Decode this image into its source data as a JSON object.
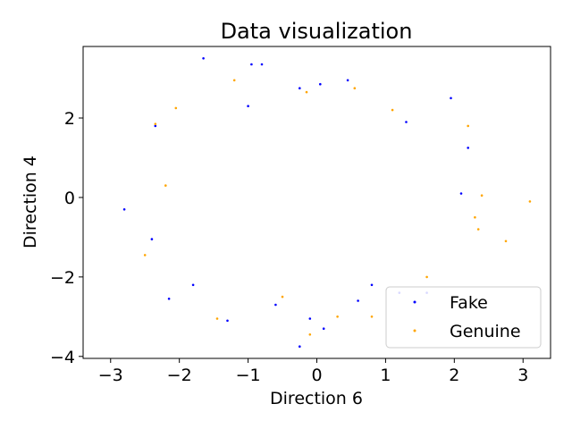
{
  "chart_data": {
    "type": "scatter",
    "title": "Data visualization",
    "xlabel": "Direction 6",
    "ylabel": "Direction 4",
    "xlim": [
      -3.4,
      3.4
    ],
    "ylim": [
      -4.05,
      3.8
    ],
    "xticks": [
      -3,
      -2,
      -1,
      0,
      1,
      2,
      3
    ],
    "yticks": [
      -4,
      -2,
      0,
      2
    ],
    "grid": false,
    "legend_position": "lower-right",
    "series": [
      {
        "name": "Fake",
        "color": "#0000ff",
        "points": [
          [
            -1.65,
            3.5
          ],
          [
            -0.95,
            3.35
          ],
          [
            -0.8,
            3.35
          ],
          [
            0.05,
            2.85
          ],
          [
            0.45,
            2.95
          ],
          [
            -0.25,
            2.75
          ],
          [
            1.95,
            2.5
          ],
          [
            2.2,
            1.25
          ],
          [
            -2.35,
            1.8
          ],
          [
            -2.8,
            -0.3
          ],
          [
            -2.4,
            -1.05
          ],
          [
            -2.15,
            -2.55
          ],
          [
            -1.3,
            -3.1
          ],
          [
            -0.25,
            -3.75
          ],
          [
            -0.1,
            -3.05
          ],
          [
            0.1,
            -3.3
          ],
          [
            1.2,
            -2.4
          ],
          [
            1.6,
            -2.4
          ],
          [
            0.6,
            -2.6
          ],
          [
            -0.6,
            -2.7
          ],
          [
            -1.8,
            -2.2
          ],
          [
            2.1,
            0.1
          ],
          [
            -1.0,
            2.3
          ],
          [
            1.3,
            1.9
          ],
          [
            0.8,
            -2.2
          ]
        ]
      },
      {
        "name": "Genuine",
        "color": "#ffa500",
        "points": [
          [
            3.1,
            -0.1
          ],
          [
            2.75,
            -1.1
          ],
          [
            2.35,
            -0.8
          ],
          [
            2.4,
            0.05
          ],
          [
            2.2,
            1.8
          ],
          [
            -2.5,
            -1.45
          ],
          [
            -2.35,
            1.85
          ],
          [
            -2.05,
            2.25
          ],
          [
            -1.45,
            -3.05
          ],
          [
            -0.1,
            -3.45
          ],
          [
            0.8,
            -3.0
          ],
          [
            -0.15,
            2.65
          ],
          [
            0.55,
            2.75
          ],
          [
            -1.2,
            2.95
          ],
          [
            1.1,
            2.2
          ],
          [
            2.3,
            -0.5
          ],
          [
            -2.2,
            0.3
          ],
          [
            0.3,
            -3.0
          ],
          [
            -0.5,
            -2.5
          ],
          [
            1.6,
            -2.0
          ]
        ]
      }
    ]
  }
}
